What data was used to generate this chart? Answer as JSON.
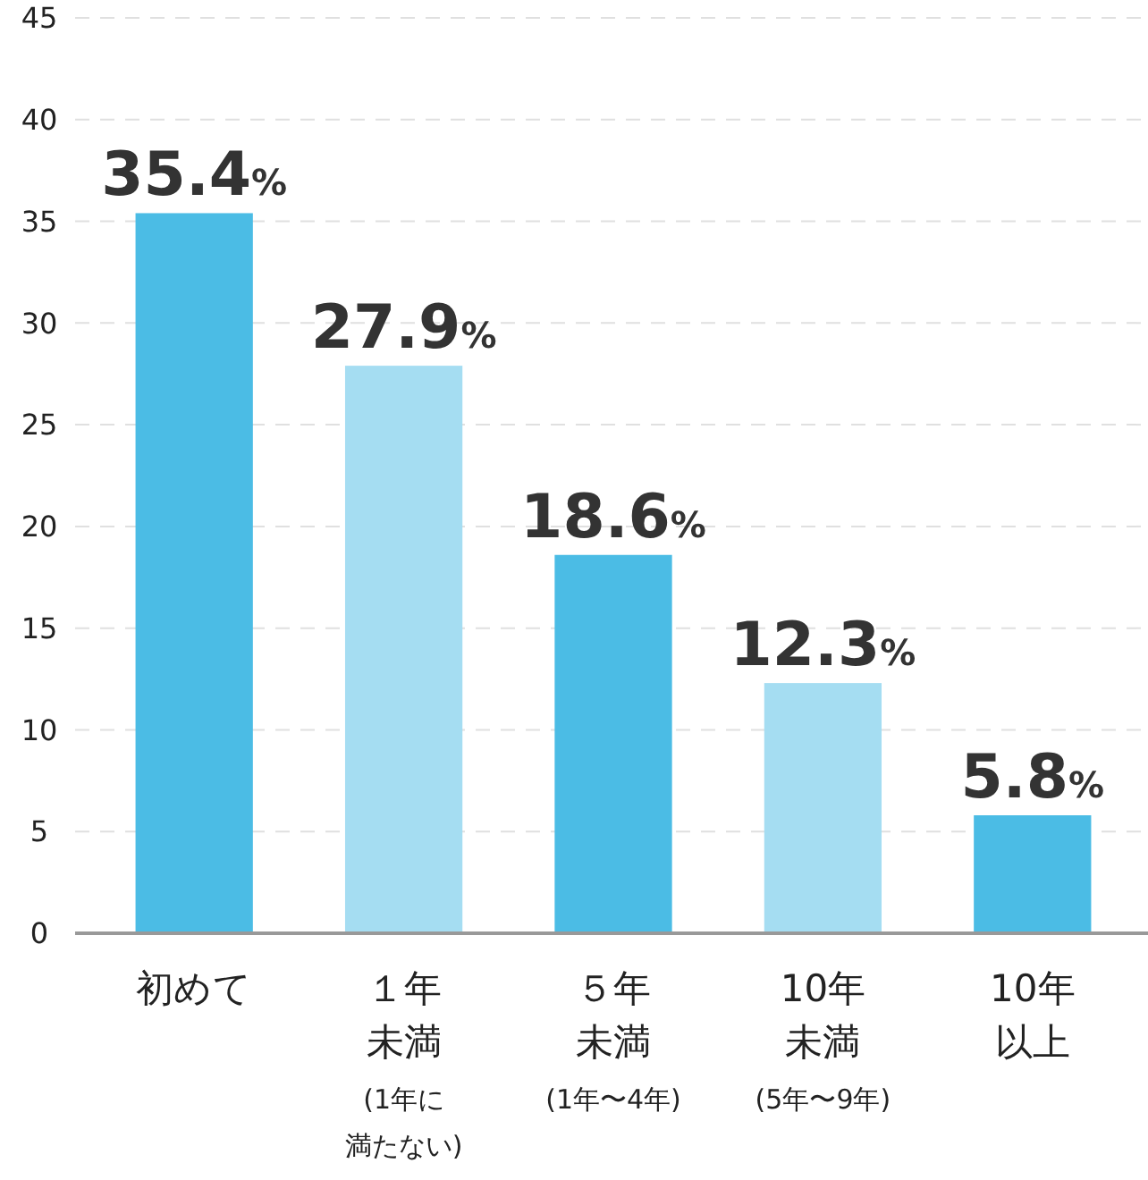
{
  "chart_data": {
    "type": "bar",
    "categories": [
      "初めて",
      "１年未満(1年に満たない)",
      "５年未満(1年〜4年)",
      "10年未満(5年〜9年)",
      "10年以上"
    ],
    "values": [
      35.4,
      27.9,
      18.6,
      12.3,
      5.8
    ],
    "colors": [
      "#4bbce5",
      "#a5ddf2",
      "#4bbce5",
      "#a5ddf2",
      "#4bbce5"
    ],
    "value_labels": [
      "35.4%",
      "27.9%",
      "18.6%",
      "12.3%",
      "5.8%"
    ],
    "ylim": [
      0,
      45
    ],
    "yticks": [
      0,
      5,
      10,
      15,
      20,
      25,
      30,
      35,
      40,
      45
    ],
    "grid": "y"
  }
}
